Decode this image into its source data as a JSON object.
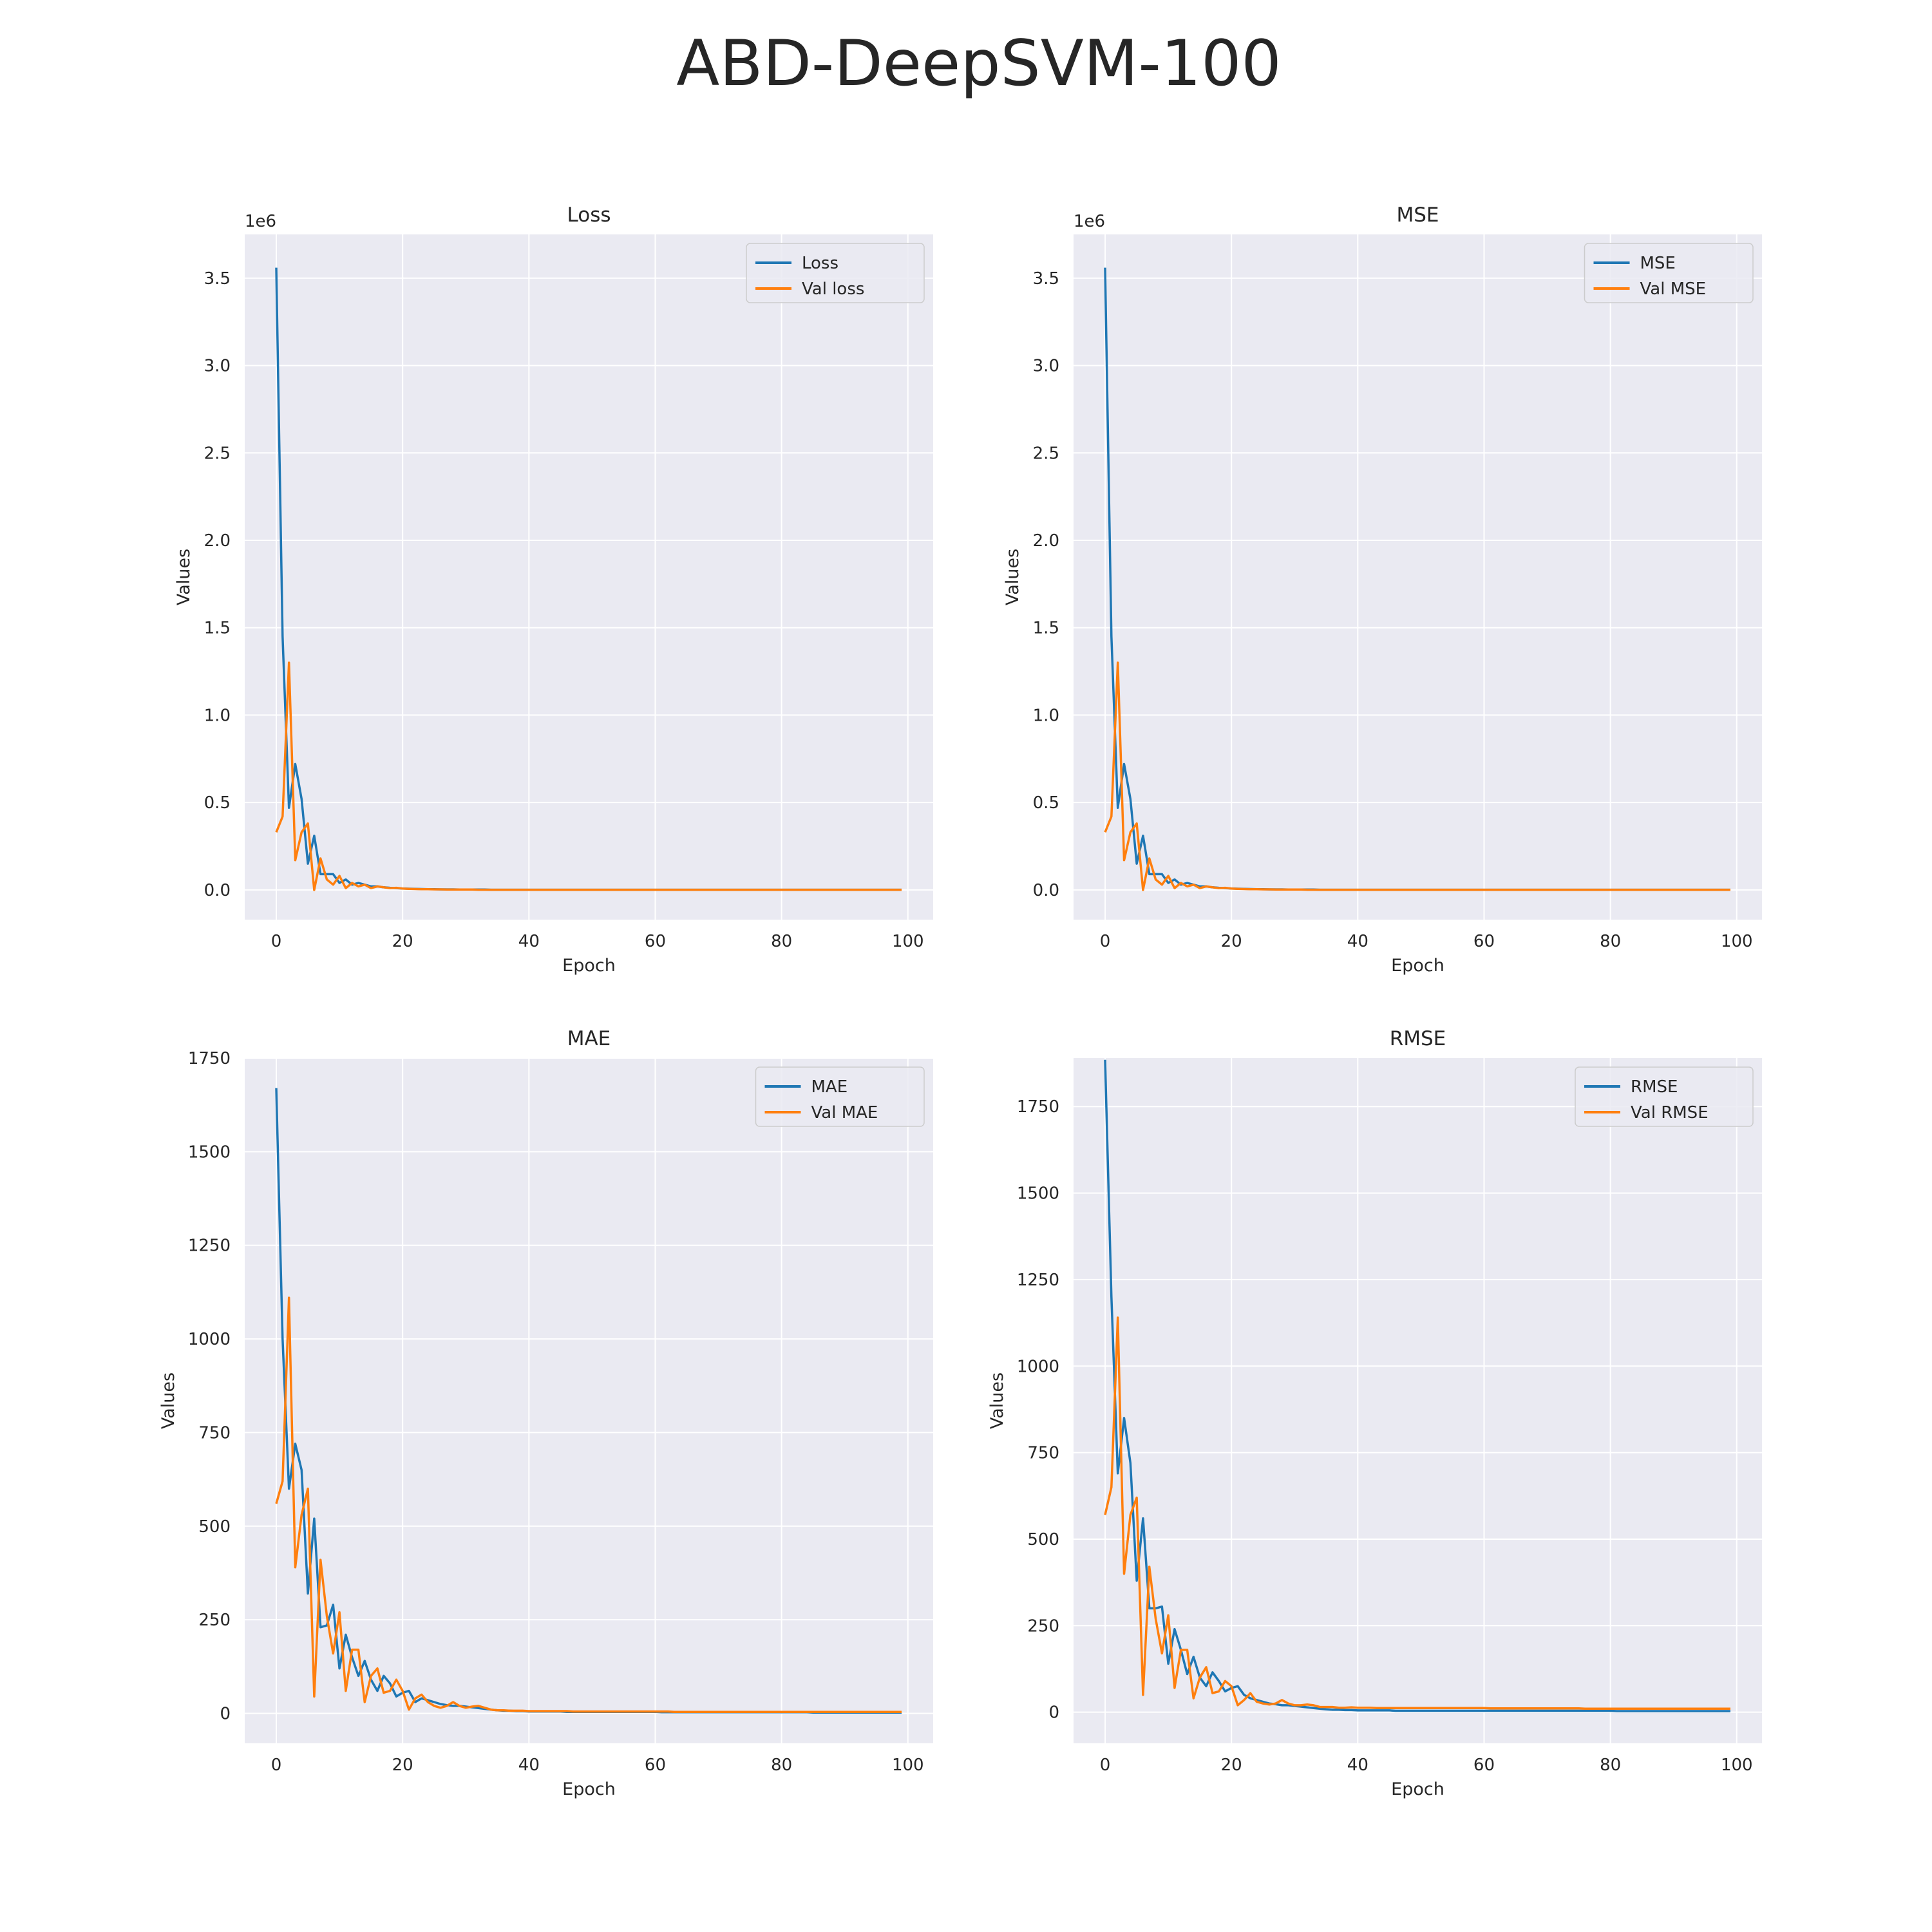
{
  "title": "ABD-DeepSVM-100",
  "colors": {
    "train": "#1f77b4",
    "val": "#ff7f0e",
    "plot_bg": "#eaeaf2",
    "grid": "#ffffff"
  },
  "chart_data": [
    {
      "type": "line",
      "title": "Loss",
      "xlabel": "Epoch",
      "ylabel": "Values",
      "y_offset_label": "1e6",
      "xlim": [
        -5,
        104
      ],
      "ylim": [
        -0.17,
        3.75
      ],
      "xticks": [
        0,
        20,
        40,
        60,
        80,
        100
      ],
      "yticks": [
        0,
        0.5,
        1.0,
        1.5,
        2.0,
        2.5,
        3.0,
        3.5
      ],
      "ytick_labels": [
        "0.0",
        "0.5",
        "1.0",
        "1.5",
        "2.0",
        "2.5",
        "3.0",
        "3.5"
      ],
      "grid": true,
      "legend": "top-right",
      "series": [
        {
          "name": "Loss",
          "color": "#1f77b4",
          "values": [
            3.56,
            1.45,
            0.47,
            0.72,
            0.52,
            0.15,
            0.31,
            0.09,
            0.09,
            0.09,
            0.04,
            0.06,
            0.03,
            0.04,
            0.03,
            0.02,
            0.02,
            0.015,
            0.012,
            0.01,
            0.008,
            0.007,
            0.006,
            0.005,
            0.004,
            0.004,
            0.003,
            0.003,
            0.003,
            0.002,
            0.002,
            0.002,
            0.002,
            0.002,
            0.001,
            0.001,
            0.001,
            0.001,
            0.001,
            0.001,
            0.001,
            0.001,
            0.001,
            0.001,
            0.001,
            0.001,
            0.001,
            0.001,
            0.001,
            0.001,
            0.001,
            0.001,
            0.001,
            0.001,
            0.001,
            0.001,
            0.001,
            0.001,
            0.001,
            0.001,
            0.001,
            0.001,
            0.001,
            0.001,
            0.001,
            0.001,
            0.001,
            0.001,
            0.001,
            0.001,
            0.001,
            0.001,
            0.001,
            0.001,
            0.001,
            0.001,
            0.001,
            0.001,
            0.001,
            0.001,
            0.001,
            0.001,
            0.001,
            0.001,
            0.001,
            0.001,
            0.001,
            0.001,
            0.001,
            0.001,
            0.001,
            0.001,
            0.001,
            0.001,
            0.001,
            0.001,
            0.001,
            0.001,
            0.001,
            0.001
          ]
        },
        {
          "name": "Val loss",
          "color": "#ff7f0e",
          "values": [
            0.33,
            0.42,
            1.3,
            0.17,
            0.33,
            0.38,
            0.0,
            0.18,
            0.06,
            0.03,
            0.08,
            0.01,
            0.04,
            0.02,
            0.03,
            0.01,
            0.02,
            0.015,
            0.01,
            0.012,
            0.008,
            0.006,
            0.005,
            0.004,
            0.004,
            0.003,
            0.003,
            0.002,
            0.002,
            0.002,
            0.002,
            0.002,
            0.001,
            0.001,
            0.001,
            0.001,
            0.001,
            0.001,
            0.001,
            0.001,
            0.001,
            0.001,
            0.001,
            0.001,
            0.001,
            0.001,
            0.001,
            0.001,
            0.001,
            0.001,
            0.001,
            0.001,
            0.001,
            0.001,
            0.001,
            0.001,
            0.001,
            0.001,
            0.001,
            0.001,
            0.001,
            0.001,
            0.001,
            0.001,
            0.001,
            0.001,
            0.001,
            0.001,
            0.001,
            0.001,
            0.001,
            0.001,
            0.001,
            0.001,
            0.001,
            0.001,
            0.001,
            0.001,
            0.001,
            0.001,
            0.001,
            0.001,
            0.001,
            0.001,
            0.001,
            0.001,
            0.001,
            0.001,
            0.001,
            0.001,
            0.001,
            0.001,
            0.001,
            0.001,
            0.001,
            0.001,
            0.001,
            0.001,
            0.001,
            0.001
          ]
        }
      ]
    },
    {
      "type": "line",
      "title": "MSE",
      "xlabel": "Epoch",
      "ylabel": "Values",
      "y_offset_label": "1e6",
      "xlim": [
        -5,
        104
      ],
      "ylim": [
        -0.17,
        3.75
      ],
      "xticks": [
        0,
        20,
        40,
        60,
        80,
        100
      ],
      "yticks": [
        0,
        0.5,
        1.0,
        1.5,
        2.0,
        2.5,
        3.0,
        3.5
      ],
      "ytick_labels": [
        "0.0",
        "0.5",
        "1.0",
        "1.5",
        "2.0",
        "2.5",
        "3.0",
        "3.5"
      ],
      "grid": true,
      "legend": "top-right",
      "series": [
        {
          "name": "MSE",
          "color": "#1f77b4",
          "values": [
            3.56,
            1.45,
            0.47,
            0.72,
            0.52,
            0.15,
            0.31,
            0.09,
            0.09,
            0.09,
            0.04,
            0.06,
            0.03,
            0.04,
            0.03,
            0.02,
            0.02,
            0.015,
            0.012,
            0.01,
            0.008,
            0.007,
            0.006,
            0.005,
            0.004,
            0.004,
            0.003,
            0.003,
            0.003,
            0.002,
            0.002,
            0.002,
            0.002,
            0.002,
            0.001,
            0.001,
            0.001,
            0.001,
            0.001,
            0.001,
            0.001,
            0.001,
            0.001,
            0.001,
            0.001,
            0.001,
            0.001,
            0.001,
            0.001,
            0.001,
            0.001,
            0.001,
            0.001,
            0.001,
            0.001,
            0.001,
            0.001,
            0.001,
            0.001,
            0.001,
            0.001,
            0.001,
            0.001,
            0.001,
            0.001,
            0.001,
            0.001,
            0.001,
            0.001,
            0.001,
            0.001,
            0.001,
            0.001,
            0.001,
            0.001,
            0.001,
            0.001,
            0.001,
            0.001,
            0.001,
            0.001,
            0.001,
            0.001,
            0.001,
            0.001,
            0.001,
            0.001,
            0.001,
            0.001,
            0.001,
            0.001,
            0.001,
            0.001,
            0.001,
            0.001,
            0.001,
            0.001,
            0.001,
            0.001,
            0.001
          ]
        },
        {
          "name": "Val MSE",
          "color": "#ff7f0e",
          "values": [
            0.33,
            0.42,
            1.3,
            0.17,
            0.33,
            0.38,
            0.0,
            0.18,
            0.06,
            0.03,
            0.08,
            0.01,
            0.04,
            0.02,
            0.03,
            0.01,
            0.02,
            0.015,
            0.01,
            0.012,
            0.008,
            0.006,
            0.005,
            0.004,
            0.004,
            0.003,
            0.003,
            0.002,
            0.002,
            0.002,
            0.002,
            0.002,
            0.001,
            0.001,
            0.001,
            0.001,
            0.001,
            0.001,
            0.001,
            0.001,
            0.001,
            0.001,
            0.001,
            0.001,
            0.001,
            0.001,
            0.001,
            0.001,
            0.001,
            0.001,
            0.001,
            0.001,
            0.001,
            0.001,
            0.001,
            0.001,
            0.001,
            0.001,
            0.001,
            0.001,
            0.001,
            0.001,
            0.001,
            0.001,
            0.001,
            0.001,
            0.001,
            0.001,
            0.001,
            0.001,
            0.001,
            0.001,
            0.001,
            0.001,
            0.001,
            0.001,
            0.001,
            0.001,
            0.001,
            0.001,
            0.001,
            0.001,
            0.001,
            0.001,
            0.001,
            0.001,
            0.001,
            0.001,
            0.001,
            0.001,
            0.001,
            0.001,
            0.001,
            0.001,
            0.001,
            0.001,
            0.001,
            0.001,
            0.001,
            0.001
          ]
        }
      ]
    },
    {
      "type": "line",
      "title": "MAE",
      "xlabel": "Epoch",
      "ylabel": "Values",
      "y_offset_label": "",
      "xlim": [
        -5,
        104
      ],
      "ylim": [
        -80,
        1750
      ],
      "xticks": [
        0,
        20,
        40,
        60,
        80,
        100
      ],
      "yticks": [
        0,
        250,
        500,
        750,
        1000,
        1250,
        1500,
        1750
      ],
      "ytick_labels": [
        "0",
        "250",
        "500",
        "750",
        "1000",
        "1250",
        "1500",
        "1750"
      ],
      "grid": true,
      "legend": "top-right",
      "series": [
        {
          "name": "MAE",
          "color": "#1f77b4",
          "values": [
            1670,
            1000,
            600,
            720,
            650,
            320,
            520,
            230,
            235,
            290,
            120,
            210,
            150,
            100,
            140,
            90,
            60,
            100,
            80,
            45,
            55,
            60,
            30,
            40,
            35,
            30,
            25,
            22,
            20,
            20,
            18,
            16,
            14,
            12,
            10,
            8,
            7,
            7,
            6,
            6,
            5,
            5,
            5,
            5,
            5,
            5,
            4,
            4,
            4,
            4,
            4,
            4,
            4,
            4,
            4,
            4,
            4,
            4,
            4,
            4,
            4,
            3,
            3,
            3,
            3,
            3,
            3,
            3,
            3,
            3,
            3,
            3,
            3,
            3,
            3,
            3,
            3,
            3,
            3,
            3,
            3,
            3,
            3,
            3,
            3,
            2,
            2,
            2,
            2,
            2,
            2,
            2,
            2,
            2,
            2,
            2,
            2,
            2,
            2,
            2
          ]
        },
        {
          "name": "Val MAE",
          "color": "#ff7f0e",
          "values": [
            560,
            620,
            1110,
            390,
            530,
            600,
            45,
            410,
            260,
            160,
            270,
            60,
            170,
            170,
            30,
            100,
            120,
            55,
            60,
            90,
            60,
            10,
            40,
            50,
            30,
            20,
            15,
            20,
            30,
            20,
            15,
            18,
            20,
            15,
            10,
            8,
            8,
            7,
            7,
            7,
            6,
            6,
            6,
            6,
            6,
            6,
            6,
            5,
            5,
            5,
            5,
            5,
            5,
            5,
            5,
            5,
            5,
            5,
            5,
            5,
            5,
            5,
            5,
            4,
            4,
            4,
            4,
            4,
            4,
            4,
            4,
            4,
            4,
            4,
            4,
            4,
            4,
            4,
            4,
            4,
            4,
            4,
            4,
            4,
            4,
            4,
            4,
            4,
            4,
            4,
            4,
            4,
            4,
            4,
            4,
            4,
            4,
            4,
            4,
            4
          ]
        }
      ]
    },
    {
      "type": "line",
      "title": "RMSE",
      "xlabel": "Epoch",
      "ylabel": "Values",
      "y_offset_label": "",
      "xlim": [
        -5,
        104
      ],
      "ylim": [
        -90,
        1890
      ],
      "xticks": [
        0,
        20,
        40,
        60,
        80,
        100
      ],
      "yticks": [
        0,
        250,
        500,
        750,
        1000,
        1250,
        1500,
        1750
      ],
      "ytick_labels": [
        "0",
        "250",
        "500",
        "750",
        "1000",
        "1250",
        "1500",
        "1750"
      ],
      "grid": true,
      "legend": "top-right",
      "series": [
        {
          "name": "RMSE",
          "color": "#1f77b4",
          "values": [
            1885,
            1200,
            690,
            850,
            720,
            380,
            560,
            300,
            300,
            305,
            140,
            240,
            180,
            110,
            160,
            100,
            75,
            115,
            90,
            60,
            70,
            75,
            50,
            40,
            35,
            30,
            25,
            23,
            20,
            20,
            18,
            16,
            14,
            12,
            10,
            8,
            7,
            7,
            6,
            6,
            5,
            5,
            5,
            5,
            5,
            5,
            4,
            4,
            4,
            4,
            4,
            4,
            4,
            4,
            4,
            4,
            4,
            4,
            4,
            4,
            4,
            4,
            4,
            4,
            4,
            4,
            4,
            4,
            4,
            4,
            4,
            4,
            4,
            4,
            4,
            4,
            4,
            4,
            4,
            4,
            4,
            3,
            3,
            3,
            3,
            3,
            3,
            3,
            3,
            3,
            3,
            3,
            3,
            3,
            3,
            3,
            3,
            3,
            3,
            3
          ]
        },
        {
          "name": "Val RMSE",
          "color": "#ff7f0e",
          "values": [
            570,
            650,
            1140,
            400,
            570,
            620,
            50,
            420,
            270,
            170,
            280,
            70,
            180,
            180,
            40,
            100,
            130,
            55,
            60,
            90,
            75,
            20,
            35,
            55,
            30,
            25,
            22,
            25,
            35,
            25,
            20,
            20,
            22,
            20,
            15,
            15,
            15,
            13,
            13,
            14,
            13,
            13,
            13,
            12,
            12,
            12,
            12,
            12,
            12,
            12,
            12,
            12,
            12,
            12,
            12,
            12,
            12,
            12,
            12,
            12,
            12,
            11,
            11,
            11,
            11,
            11,
            11,
            11,
            11,
            11,
            11,
            11,
            11,
            11,
            11,
            11,
            10,
            10,
            10,
            10,
            10,
            10,
            10,
            10,
            10,
            10,
            10,
            10,
            10,
            10,
            10,
            10,
            10,
            10,
            10,
            10,
            10,
            10,
            10,
            10
          ]
        }
      ]
    }
  ]
}
